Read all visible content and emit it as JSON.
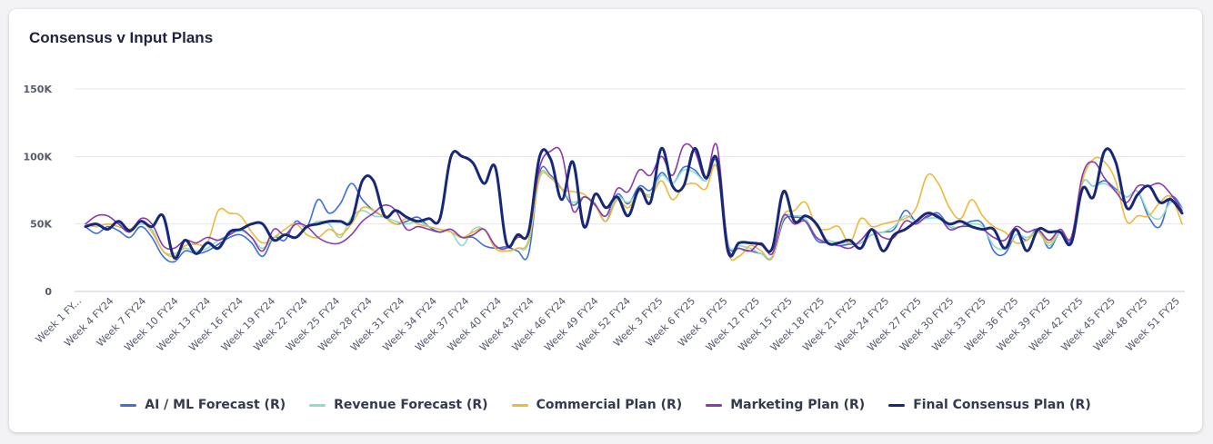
{
  "card": {
    "title": "Consensus v Input Plans"
  },
  "chart_data": {
    "type": "line",
    "title": "Consensus v Input Plans",
    "xlabel": "",
    "ylabel": "",
    "ylim": [
      0,
      150000
    ],
    "yticks": [
      {
        "value": 0,
        "label": "0"
      },
      {
        "value": 50000,
        "label": "50K"
      },
      {
        "value": 100000,
        "label": "100K"
      },
      {
        "value": 150000,
        "label": "150K"
      }
    ],
    "grid": true,
    "legend_position": "bottom",
    "tick_labels": [
      "Week 1 FY...",
      "Week 4 FY24",
      "Week 7 FY24",
      "Week 10 FY24",
      "Week 13 FY24",
      "Week 16 FY24",
      "Week 19 FY24",
      "Week 22 FY24",
      "Week 25 FY24",
      "Week 28 FY24",
      "Week 31 FY24",
      "Week 34 FY24",
      "Week 37 FY24",
      "Week 40 FY24",
      "Week 43 FY24",
      "Week 46 FY24",
      "Week 49 FY24",
      "Week 52 FY24",
      "Week 3 FY25",
      "Week 6 FY25",
      "Week 9 FY25",
      "Week 12 FY25",
      "Week 15 FY25",
      "Week 18 FY25",
      "Week 21 FY25",
      "Week 24 FY25",
      "Week 27 FY25",
      "Week 30 FY25",
      "Week 33 FY25",
      "Week 36 FY25",
      "Week 39 FY25",
      "Week 42 FY25",
      "Week 45 FY25",
      "Week 48 FY25",
      "Week 51 FY25"
    ],
    "series": [
      {
        "name": "AI / ML Forecast (R)",
        "color": "#3f6fd8",
        "width": 1.6,
        "values": [
          48,
          43,
          48,
          45,
          40,
          48,
          40,
          26,
          22,
          30,
          28,
          30,
          35,
          40,
          42,
          36,
          26,
          40,
          38,
          52,
          48,
          68,
          58,
          65,
          80,
          68,
          60,
          55,
          50,
          52,
          55,
          48,
          44,
          46,
          40,
          40,
          34,
          32,
          33,
          30,
          28,
          88,
          86,
          76,
          64,
          70,
          65,
          52,
          72,
          65,
          78,
          75,
          88,
          80,
          92,
          90,
          82,
          96,
          36,
          32,
          30,
          28,
          25,
          52,
          55,
          52,
          38,
          36,
          34,
          35,
          36,
          42,
          44,
          46,
          60,
          52,
          55,
          58,
          48,
          48,
          52,
          50,
          30,
          28,
          42,
          38,
          46,
          32,
          44,
          38,
          80,
          78,
          82,
          76,
          70,
          74,
          55,
          48,
          70,
          62
        ]
      },
      {
        "name": "Revenue Forecast (R)",
        "color": "#8fdcc9",
        "width": 1.6,
        "values": [
          50,
          48,
          50,
          48,
          46,
          50,
          46,
          30,
          28,
          32,
          30,
          32,
          38,
          42,
          45,
          40,
          32,
          40,
          42,
          50,
          48,
          52,
          50,
          40,
          55,
          60,
          56,
          55,
          52,
          50,
          52,
          48,
          46,
          44,
          34,
          46,
          46,
          34,
          30,
          32,
          36,
          84,
          84,
          76,
          66,
          70,
          64,
          56,
          70,
          66,
          74,
          72,
          86,
          80,
          90,
          88,
          82,
          92,
          36,
          34,
          32,
          28,
          26,
          54,
          56,
          54,
          40,
          38,
          36,
          36,
          36,
          42,
          44,
          48,
          56,
          52,
          54,
          54,
          48,
          48,
          50,
          48,
          34,
          32,
          42,
          40,
          44,
          34,
          44,
          40,
          80,
          78,
          80,
          75,
          70,
          74,
          58,
          54,
          66,
          62
        ]
      },
      {
        "name": "Commercial Plan (R)",
        "color": "#ecb93a",
        "width": 1.6,
        "values": [
          50,
          48,
          50,
          48,
          46,
          52,
          44,
          30,
          26,
          34,
          35,
          36,
          60,
          58,
          56,
          44,
          36,
          40,
          46,
          50,
          42,
          40,
          46,
          42,
          50,
          62,
          60,
          55,
          50,
          54,
          50,
          48,
          46,
          44,
          40,
          44,
          46,
          32,
          30,
          32,
          38,
          86,
          84,
          76,
          74,
          72,
          64,
          52,
          68,
          62,
          74,
          70,
          82,
          68,
          78,
          80,
          76,
          92,
          30,
          26,
          34,
          30,
          25,
          56,
          60,
          66,
          48,
          46,
          48,
          36,
          54,
          48,
          50,
          52,
          54,
          62,
          86,
          80,
          62,
          54,
          68,
          56,
          48,
          44,
          36,
          38,
          44,
          36,
          46,
          40,
          82,
          98,
          96,
          82,
          52,
          56,
          56,
          66,
          70,
          50
        ]
      },
      {
        "name": "Marketing Plan (R)",
        "color": "#8b3aab",
        "width": 1.6,
        "values": [
          50,
          56,
          56,
          50,
          44,
          54,
          50,
          34,
          32,
          38,
          36,
          40,
          38,
          42,
          46,
          40,
          30,
          46,
          42,
          50,
          48,
          40,
          36,
          36,
          42,
          52,
          58,
          64,
          60,
          46,
          48,
          46,
          44,
          46,
          40,
          42,
          46,
          34,
          32,
          40,
          44,
          92,
          104,
          102,
          60,
          70,
          64,
          56,
          76,
          74,
          90,
          86,
          100,
          86,
          108,
          104,
          84,
          108,
          34,
          32,
          30,
          36,
          28,
          56,
          50,
          52,
          40,
          36,
          34,
          32,
          38,
          46,
          40,
          40,
          52,
          50,
          56,
          56,
          46,
          48,
          48,
          46,
          40,
          38,
          48,
          44,
          46,
          38,
          46,
          40,
          86,
          96,
          84,
          74,
          66,
          78,
          78,
          80,
          72,
          60
        ]
      },
      {
        "name": "Final Consensus Plan (R)",
        "color": "#172878",
        "width": 3.0,
        "values": [
          48,
          50,
          46,
          52,
          45,
          52,
          48,
          56,
          25,
          38,
          28,
          36,
          32,
          44,
          46,
          50,
          50,
          38,
          42,
          40,
          48,
          50,
          52,
          52,
          52,
          82,
          82,
          56,
          60,
          55,
          52,
          54,
          54,
          100,
          100,
          95,
          80,
          92,
          36,
          42,
          44,
          100,
          98,
          68,
          96,
          48,
          72,
          62,
          70,
          56,
          76,
          66,
          106,
          78,
          78,
          106,
          84,
          98,
          30,
          36,
          36,
          35,
          32,
          74,
          52,
          56,
          50,
          36,
          36,
          38,
          32,
          46,
          30,
          42,
          46,
          52,
          58,
          55,
          50,
          52,
          48,
          46,
          46,
          32,
          46,
          30,
          46,
          44,
          44,
          36,
          76,
          70,
          104,
          96,
          62,
          72,
          78,
          66,
          68,
          58
        ]
      }
    ]
  }
}
